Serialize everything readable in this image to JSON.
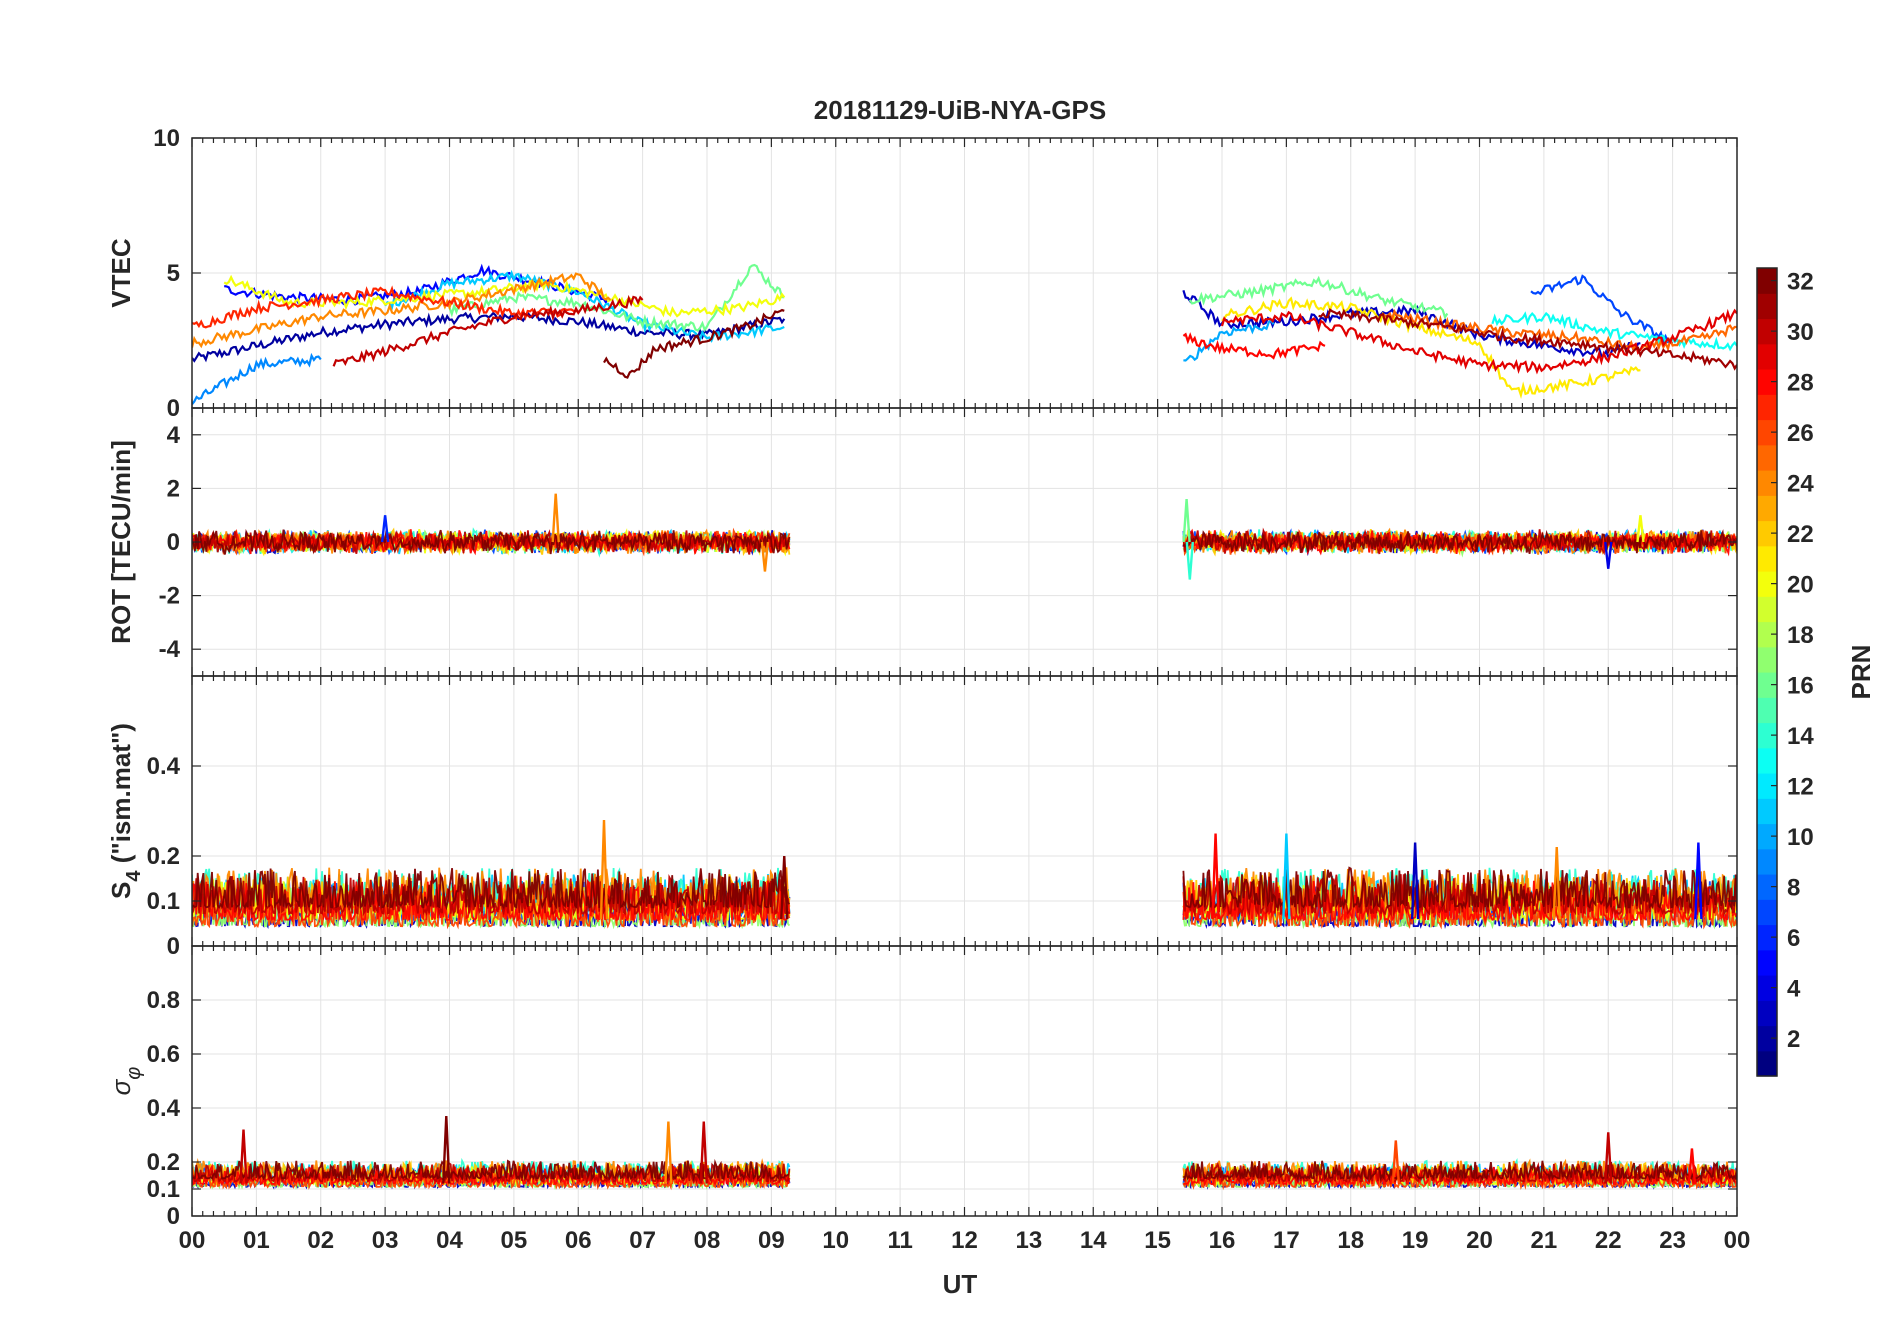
{
  "chart_data": {
    "type": "line",
    "title": "20181129-UiB-NYA-GPS",
    "xlabel": "UT",
    "x_unit": "hours",
    "xlim": [
      0,
      24
    ],
    "x_ticks": [
      0,
      1,
      2,
      3,
      4,
      5,
      6,
      7,
      8,
      9,
      10,
      11,
      12,
      13,
      14,
      15,
      16,
      17,
      18,
      19,
      20,
      21,
      22,
      23,
      24
    ],
    "x_tick_labels": [
      "00",
      "01",
      "02",
      "03",
      "04",
      "05",
      "06",
      "07",
      "08",
      "09",
      "10",
      "11",
      "12",
      "13",
      "14",
      "15",
      "16",
      "17",
      "18",
      "19",
      "20",
      "21",
      "22",
      "23",
      "00"
    ],
    "data_gap_ut": [
      9.28,
      15.4
    ],
    "grid": true,
    "panels": [
      {
        "name": "VTEC",
        "ylabel": "VTEC",
        "ylim": [
          0,
          10
        ],
        "y_ticks": [
          0,
          5,
          10
        ],
        "y_tick_labels": [
          "0",
          "5",
          "10"
        ],
        "series": [
          {
            "prn": 2,
            "x": [
              0,
              1,
              2,
              3,
              4,
              5,
              6,
              7,
              8,
              9.2
            ],
            "values": [
              1.8,
              2.3,
              2.8,
              3.1,
              3.3,
              3.4,
              3.2,
              2.8,
              2.7,
              3.3
            ]
          },
          {
            "prn": 5,
            "x": [
              0.5,
              1.5,
              2.5,
              3.5,
              4.5,
              5.5,
              6.5
            ],
            "values": [
              4.4,
              4.1,
              4.0,
              4.3,
              5.1,
              4.6,
              4.0
            ]
          },
          {
            "prn": 9,
            "x": [
              0,
              1,
              2
            ],
            "values": [
              0.2,
              1.6,
              1.8
            ]
          },
          {
            "prn": 11,
            "x": [
              3,
              4,
              5,
              6,
              7,
              8,
              9.2
            ],
            "values": [
              3.8,
              4.6,
              4.9,
              4.3,
              3.1,
              2.6,
              3.0
            ]
          },
          {
            "prn": 16,
            "x": [
              4,
              5,
              6,
              7,
              8,
              8.7,
              9.2
            ],
            "values": [
              3.6,
              4.1,
              3.9,
              3.2,
              3.0,
              5.3,
              4.1
            ]
          },
          {
            "prn": 20,
            "x": [
              0.5,
              1.5,
              2.5,
              3.5,
              4.5,
              5.5,
              6.5,
              7.5,
              8.5,
              9.2
            ],
            "values": [
              4.8,
              3.9,
              3.9,
              4.1,
              4.3,
              4.6,
              4.1,
              3.5,
              3.7,
              4.1
            ]
          },
          {
            "prn": 24,
            "x": [
              0,
              1,
              2,
              3,
              4,
              5,
              6,
              6.5
            ],
            "values": [
              2.4,
              2.9,
              3.4,
              3.6,
              3.9,
              4.4,
              4.9,
              4.0
            ]
          },
          {
            "prn": 27,
            "x": [
              0,
              1,
              2,
              3,
              4,
              5,
              6
            ],
            "values": [
              3.0,
              3.7,
              4.0,
              4.3,
              3.9,
              3.5,
              3.6
            ]
          },
          {
            "prn": 30,
            "x": [
              2.2,
              3,
              4,
              5,
              6,
              7
            ],
            "values": [
              1.6,
              2.1,
              2.8,
              3.4,
              3.6,
              4.0
            ]
          },
          {
            "prn": 32,
            "x": [
              6.4,
              6.8,
              7.2,
              8,
              8.6,
              9.2
            ],
            "values": [
              1.8,
              1.2,
              2.2,
              2.6,
              3.0,
              3.6
            ]
          },
          {
            "prn": 3,
            "x": [
              15.4,
              16,
              17,
              18,
              19,
              20,
              21,
              22,
              22.5
            ],
            "values": [
              4.3,
              3.1,
              3.2,
              3.5,
              3.6,
              2.7,
              2.3,
              2.0,
              2.4
            ]
          },
          {
            "prn": 7,
            "x": [
              20.8,
              21.6,
              22.2,
              23
            ],
            "values": [
              4.2,
              4.8,
              3.5,
              2.4
            ]
          },
          {
            "prn": 10,
            "x": [
              15.4,
              16,
              16.8
            ],
            "values": [
              1.6,
              2.8,
              3.1
            ]
          },
          {
            "prn": 13,
            "x": [
              20.2,
              21,
              22,
              23,
              24
            ],
            "values": [
              3.2,
              3.4,
              2.8,
              2.5,
              2.3
            ]
          },
          {
            "prn": 16,
            "x": [
              15.5,
              16.5,
              17.5,
              18.5,
              19.5
            ],
            "values": [
              4.0,
              4.3,
              4.7,
              4.0,
              3.5
            ]
          },
          {
            "prn": 21,
            "x": [
              16,
              17,
              18,
              19,
              20,
              20.5,
              21.5,
              22.5
            ],
            "values": [
              3.4,
              3.9,
              3.7,
              3.0,
              2.4,
              0.6,
              0.9,
              1.4
            ]
          },
          {
            "prn": 25,
            "x": [
              18.5,
              19.5,
              20.5,
              21.5,
              22.5,
              23.5,
              24
            ],
            "values": [
              3.5,
              3.1,
              2.8,
              2.6,
              2.2,
              2.6,
              3.0
            ]
          },
          {
            "prn": 28,
            "x": [
              15.4,
              16,
              16.8,
              17.6
            ],
            "values": [
              2.6,
              2.2,
              2.0,
              2.3
            ]
          },
          {
            "prn": 29,
            "x": [
              16,
              17,
              18,
              19,
              20,
              21,
              22,
              23,
              24
            ],
            "values": [
              3.2,
              3.4,
              2.8,
              2.1,
              1.6,
              1.5,
              1.9,
              2.6,
              3.5
            ]
          },
          {
            "prn": 31,
            "x": [
              17.5,
              18.5,
              19.5,
              20.5,
              21.5,
              22.5,
              23.5,
              24
            ],
            "values": [
              3.5,
              3.3,
              3.0,
              2.6,
              2.4,
              2.1,
              1.8,
              1.6
            ]
          }
        ]
      },
      {
        "name": "ROT",
        "ylabel": "ROT [TECU/min]",
        "ylim": [
          -5,
          5
        ],
        "y_ticks": [
          -4,
          -2,
          0,
          2,
          4
        ],
        "y_tick_labels": [
          "-4",
          "-2",
          "0",
          "2",
          "4"
        ],
        "noise_amplitude": 0.3,
        "baseline": 0,
        "segments_ut": [
          [
            0,
            9.28
          ],
          [
            15.4,
            24
          ]
        ],
        "spikes": [
          {
            "x": 5.65,
            "value": 1.8,
            "prn": 24
          },
          {
            "x": 3.0,
            "value": 1.0,
            "prn": 6
          },
          {
            "x": 8.9,
            "value": -1.1,
            "prn": 24
          },
          {
            "x": 15.45,
            "value": 1.6,
            "prn": 16
          },
          {
            "x": 15.5,
            "value": -1.4,
            "prn": 14
          },
          {
            "x": 22.0,
            "value": -1.0,
            "prn": 4
          },
          {
            "x": 22.5,
            "value": 1.0,
            "prn": 20
          }
        ]
      },
      {
        "name": "S4",
        "ylabel": "S4 (\"ism.mat\")",
        "ylabel_main": "S",
        "ylabel_sub": "4",
        "ylabel_rest": " (\"ism.mat\")",
        "ylim": [
          0,
          0.6
        ],
        "y_ticks": [
          0,
          0.1,
          0.2,
          0.4
        ],
        "y_tick_labels": [
          "0",
          "0.1",
          "0.2",
          "0.4"
        ],
        "baseline": 0.06,
        "noise_amplitude": 0.04,
        "segments_ut": [
          [
            0,
            9.28
          ],
          [
            15.4,
            24
          ]
        ],
        "spikes": [
          {
            "x": 6.4,
            "value": 0.28,
            "prn": 24
          },
          {
            "x": 9.2,
            "value": 0.2,
            "prn": 32
          },
          {
            "x": 15.9,
            "value": 0.25,
            "prn": 28
          },
          {
            "x": 17.0,
            "value": 0.25,
            "prn": 11
          },
          {
            "x": 19.0,
            "value": 0.23,
            "prn": 3
          },
          {
            "x": 21.2,
            "value": 0.22,
            "prn": 24
          },
          {
            "x": 23.4,
            "value": 0.23,
            "prn": 5
          }
        ]
      },
      {
        "name": "sigma_phi",
        "ylabel": "σφ",
        "ylabel_main": "σ",
        "ylabel_sub": "φ",
        "ylim": [
          0,
          1
        ],
        "y_ticks": [
          0,
          0.1,
          0.2,
          0.4,
          0.6,
          0.8
        ],
        "y_tick_labels": [
          "0",
          "0.1",
          "0.2",
          "0.4",
          "0.6",
          "0.8"
        ],
        "baseline": 0.12,
        "noise_amplitude": 0.03,
        "segments_ut": [
          [
            0,
            9.28
          ],
          [
            15.4,
            24
          ]
        ],
        "spikes": [
          {
            "x": 0.8,
            "value": 0.32,
            "prn": 30
          },
          {
            "x": 3.95,
            "value": 0.37,
            "prn": 32
          },
          {
            "x": 7.4,
            "value": 0.35,
            "prn": 24
          },
          {
            "x": 7.95,
            "value": 0.35,
            "prn": 30
          },
          {
            "x": 18.7,
            "value": 0.28,
            "prn": 26
          },
          {
            "x": 22.0,
            "value": 0.31,
            "prn": 30
          },
          {
            "x": 23.3,
            "value": 0.25,
            "prn": 28
          }
        ]
      }
    ],
    "colorbar": {
      "label": "PRN",
      "colormap": "jet",
      "range": [
        1,
        32
      ],
      "ticks": [
        2,
        4,
        6,
        8,
        10,
        12,
        14,
        16,
        18,
        20,
        22,
        24,
        26,
        28,
        30,
        32
      ],
      "tick_labels": [
        "2",
        "4",
        "6",
        "8",
        "10",
        "12",
        "14",
        "16",
        "18",
        "20",
        "22",
        "24",
        "26",
        "28",
        "30",
        "32"
      ]
    }
  }
}
